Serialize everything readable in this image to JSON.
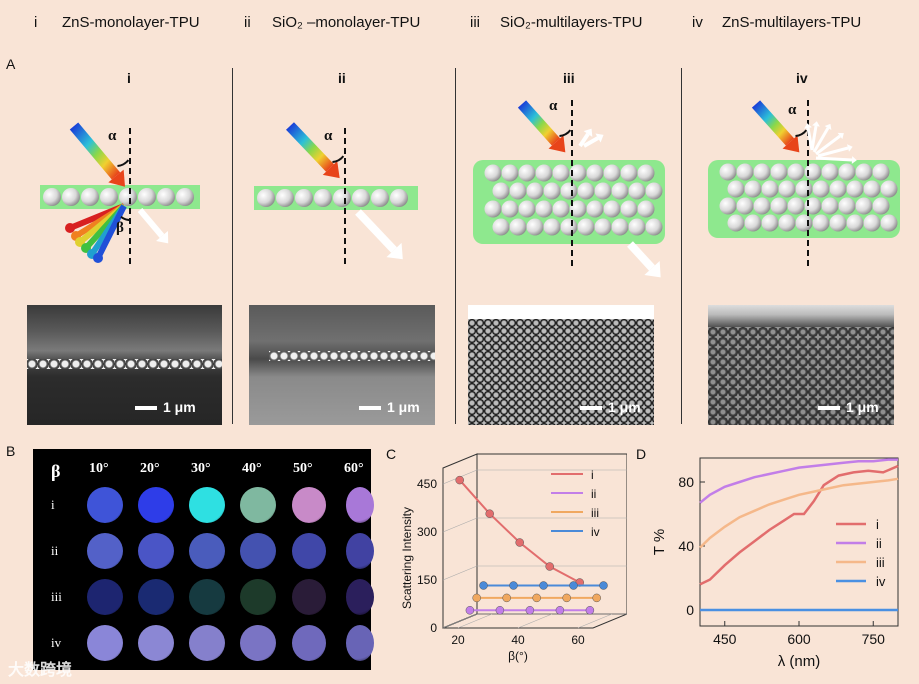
{
  "header": {
    "items": [
      {
        "num": "i",
        "name": "ZnS-monolayer-TPU"
      },
      {
        "num": "ii",
        "name": "SiO₂ –monolayer-TPU"
      },
      {
        "num": "iii",
        "name": "SiO₂-multilayers-TPU"
      },
      {
        "num": "iv",
        "name": "ZnS-multilayers-TPU"
      }
    ]
  },
  "panel_labels": {
    "A": "A",
    "B": "B",
    "C": "C",
    "D": "D"
  },
  "panelA": {
    "columns": [
      "i",
      "ii",
      "iii",
      "iv"
    ],
    "alpha": "α",
    "beta": "β",
    "scale_bar": "1 μm"
  },
  "panelB": {
    "beta_symbol": "β",
    "angles": [
      "10°",
      "20°",
      "30°",
      "40°",
      "50°",
      "60°"
    ],
    "rows": [
      "i",
      "ii",
      "iii",
      "iv"
    ],
    "colors": [
      [
        "#3f54d8",
        "#2e3de8",
        "#2ee0e2",
        "#7fb8a0",
        "#c88ac8",
        "#a878d8"
      ],
      [
        "#5361c8",
        "#4a55c6",
        "#4a5cbc",
        "#4452b0",
        "#4047a8",
        "#4142a2"
      ],
      [
        "#1d2570",
        "#1a2a72",
        "#163a40",
        "#1d3a2a",
        "#2a1c38",
        "#2b1f5c"
      ],
      [
        "#8a86d8",
        "#8b87d4",
        "#8580cc",
        "#7a74c4",
        "#6f69bc",
        "#6864b6"
      ]
    ]
  },
  "chart_data": [
    {
      "type": "line",
      "panel": "C",
      "title": "",
      "xlabel": "β(°)",
      "ylabel": "Scattering Intensity",
      "x": [
        20,
        30,
        40,
        50,
        60
      ],
      "xticks": [
        "20",
        "40",
        "60"
      ],
      "yticks": [
        "0",
        "150",
        "300",
        "450"
      ],
      "ylim": [
        0,
        500
      ],
      "series": [
        {
          "name": "i",
          "color": "#e26d6d",
          "values": [
            460,
            355,
            265,
            190,
            140
          ]
        },
        {
          "name": "ii",
          "color": "#c27ee8",
          "values": [
            40,
            40,
            40,
            40,
            40
          ]
        },
        {
          "name": "iii",
          "color": "#f0a860",
          "values": [
            70,
            70,
            70,
            70,
            70
          ]
        },
        {
          "name": "iv",
          "color": "#4a8ad8",
          "values": [
            100,
            100,
            100,
            100,
            100
          ]
        }
      ]
    },
    {
      "type": "line",
      "panel": "D",
      "title": "",
      "xlabel": "λ (nm)",
      "ylabel": "T %",
      "xticks": [
        "450",
        "600",
        "750"
      ],
      "yticks": [
        "0",
        "40",
        "80"
      ],
      "xlim": [
        400,
        800
      ],
      "ylim": [
        -10,
        95
      ],
      "series": [
        {
          "name": "i",
          "color": "#e26d6d",
          "x": [
            400,
            420,
            450,
            480,
            510,
            540,
            570,
            590,
            610,
            630,
            650,
            680,
            710,
            740,
            770,
            800
          ],
          "values": [
            16,
            19,
            28,
            36,
            43,
            50,
            56,
            60,
            60,
            68,
            78,
            84,
            86,
            87,
            86,
            90
          ]
        },
        {
          "name": "ii",
          "color": "#c27ee8",
          "x": [
            400,
            420,
            450,
            480,
            510,
            540,
            570,
            600,
            630,
            660,
            690,
            720,
            750,
            780,
            800
          ],
          "values": [
            67,
            72,
            77,
            80,
            83,
            85,
            87,
            89,
            90,
            91,
            92,
            93,
            93,
            94,
            94
          ]
        },
        {
          "name": "iii",
          "color": "#f5b88a",
          "x": [
            400,
            420,
            450,
            480,
            510,
            540,
            570,
            600,
            630,
            660,
            690,
            720,
            750,
            780,
            800
          ],
          "values": [
            39,
            45,
            52,
            58,
            62,
            66,
            69,
            72,
            74,
            76,
            78,
            79,
            80,
            81,
            82
          ]
        },
        {
          "name": "iv",
          "color": "#4a90e2",
          "x": [
            400,
            800
          ],
          "values": [
            0,
            0
          ]
        }
      ]
    }
  ],
  "watermark": "大数跨境"
}
